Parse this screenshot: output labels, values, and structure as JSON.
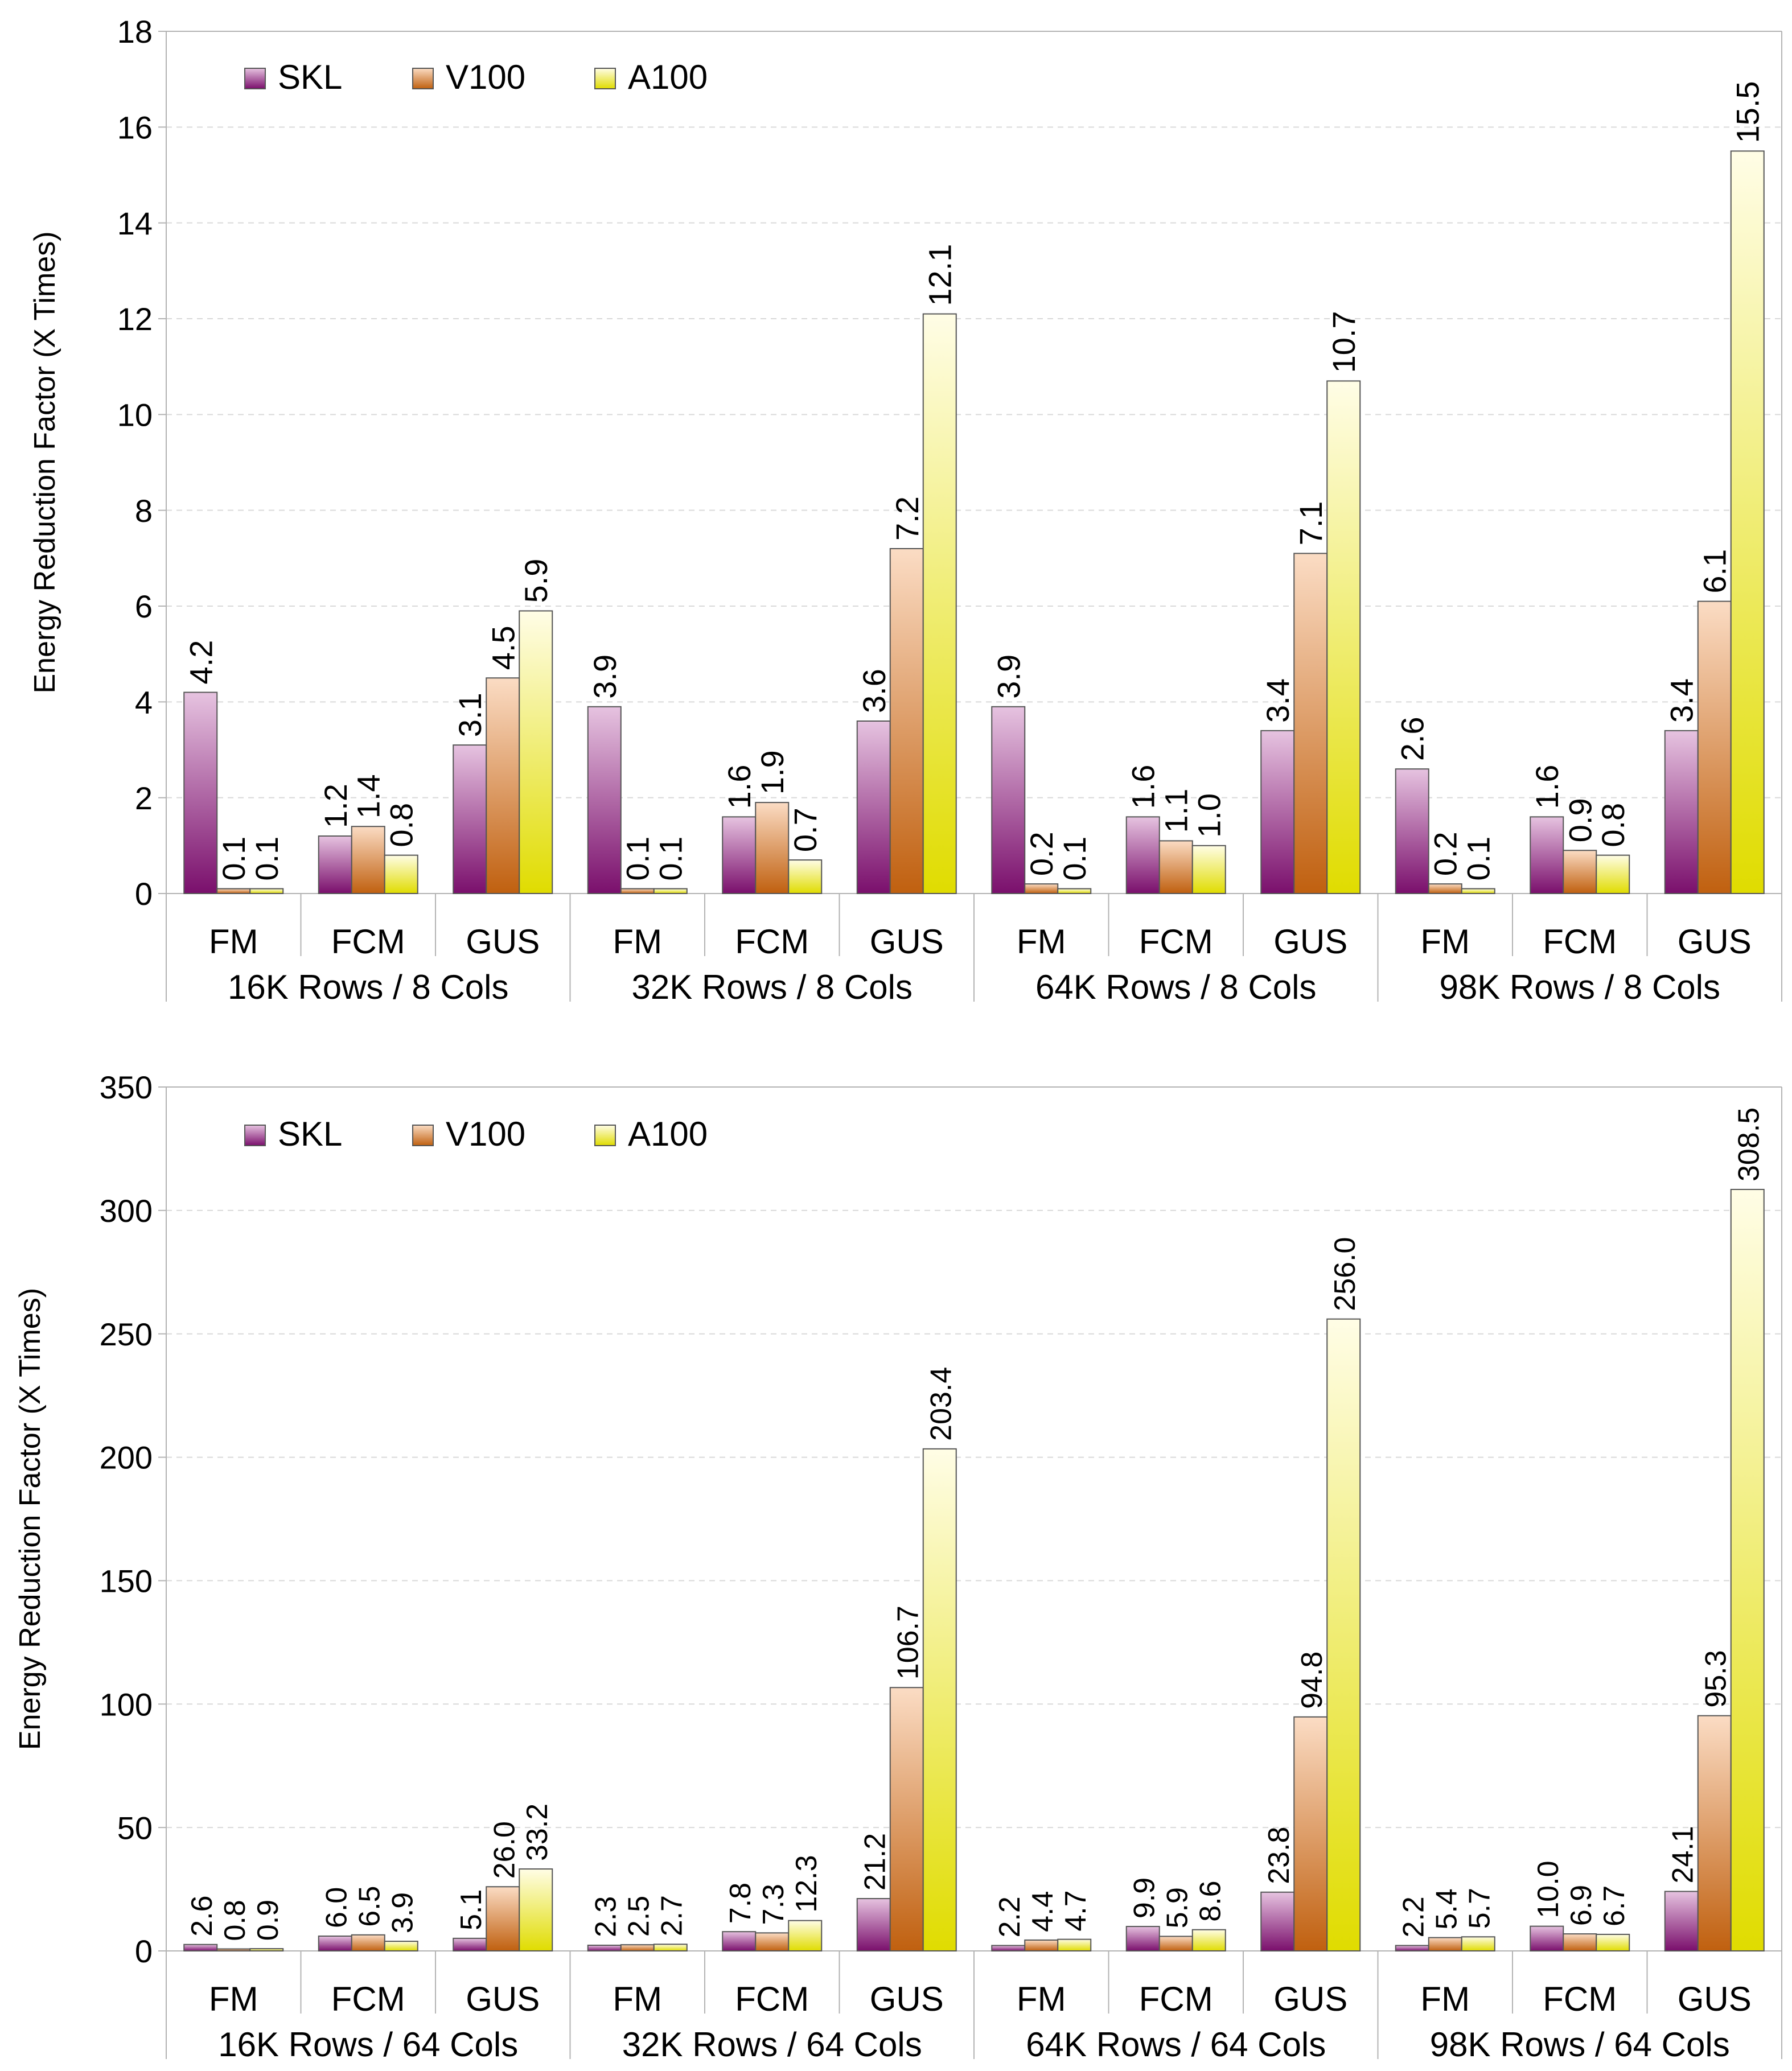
{
  "colors": {
    "SKL": {
      "top": "#e6c3e0",
      "bottom": "#7a0f6c"
    },
    "V100": {
      "top": "#fbdcc4",
      "bottom": "#c0600f"
    },
    "A100": {
      "top": "#fffde6",
      "bottom": "#e0dc00"
    }
  },
  "chart_data": [
    {
      "type": "bar",
      "title": "",
      "ylabel": "Energy Reduction Factor (X Times)",
      "xlabel": "",
      "ylim": [
        0,
        18
      ],
      "yticks": [
        0,
        2,
        4,
        6,
        8,
        10,
        12,
        14,
        16,
        18
      ],
      "grid": true,
      "legend_position": "top-left",
      "series_names": [
        "SKL",
        "V100",
        "A100"
      ],
      "groups": [
        {
          "label": "16K Rows / 8 Cols",
          "categories": [
            {
              "name": "FM",
              "values": [
                4.2,
                0.1,
                0.1
              ]
            },
            {
              "name": "FCM",
              "values": [
                1.2,
                1.4,
                0.8
              ]
            },
            {
              "name": "GUS",
              "values": [
                3.1,
                4.5,
                5.9
              ]
            }
          ]
        },
        {
          "label": "32K Rows / 8 Cols",
          "categories": [
            {
              "name": "FM",
              "values": [
                3.9,
                0.1,
                0.1
              ]
            },
            {
              "name": "FCM",
              "values": [
                1.6,
                1.9,
                0.7
              ]
            },
            {
              "name": "GUS",
              "values": [
                3.6,
                7.2,
                12.1
              ]
            }
          ]
        },
        {
          "label": "64K Rows / 8 Cols",
          "categories": [
            {
              "name": "FM",
              "values": [
                3.9,
                0.2,
                0.1
              ]
            },
            {
              "name": "FCM",
              "values": [
                1.6,
                1.1,
                1.0
              ]
            },
            {
              "name": "GUS",
              "values": [
                3.4,
                7.1,
                10.7
              ]
            }
          ]
        },
        {
          "label": "98K Rows / 8 Cols",
          "categories": [
            {
              "name": "FM",
              "values": [
                2.6,
                0.2,
                0.1
              ]
            },
            {
              "name": "FCM",
              "values": [
                1.6,
                0.9,
                0.8
              ]
            },
            {
              "name": "GUS",
              "values": [
                3.4,
                6.1,
                15.5
              ]
            }
          ]
        }
      ]
    },
    {
      "type": "bar",
      "title": "",
      "ylabel": "Energy Reduction Factor (X Times)",
      "xlabel": "",
      "ylim": [
        0,
        350
      ],
      "yticks": [
        0,
        50,
        100,
        150,
        200,
        250,
        300,
        350
      ],
      "grid": true,
      "legend_position": "top-left",
      "series_names": [
        "SKL",
        "V100",
        "A100"
      ],
      "groups": [
        {
          "label": "16K Rows / 64 Cols",
          "categories": [
            {
              "name": "FM",
              "values": [
                2.6,
                0.8,
                0.9
              ]
            },
            {
              "name": "FCM",
              "values": [
                6.0,
                6.5,
                3.9
              ]
            },
            {
              "name": "GUS",
              "values": [
                5.1,
                26.0,
                33.2
              ]
            }
          ]
        },
        {
          "label": "32K Rows / 64 Cols",
          "categories": [
            {
              "name": "FM",
              "values": [
                2.3,
                2.5,
                2.7
              ]
            },
            {
              "name": "FCM",
              "values": [
                7.8,
                7.3,
                12.3
              ]
            },
            {
              "name": "GUS",
              "values": [
                21.2,
                106.7,
                203.4
              ]
            }
          ]
        },
        {
          "label": "64K Rows / 64 Cols",
          "categories": [
            {
              "name": "FM",
              "values": [
                2.2,
                4.4,
                4.7
              ]
            },
            {
              "name": "FCM",
              "values": [
                9.9,
                5.9,
                8.6
              ]
            },
            {
              "name": "GUS",
              "values": [
                23.8,
                94.8,
                256.0
              ]
            }
          ]
        },
        {
          "label": "98K Rows / 64 Cols",
          "categories": [
            {
              "name": "FM",
              "values": [
                2.2,
                5.4,
                5.7
              ]
            },
            {
              "name": "FCM",
              "values": [
                10.0,
                6.9,
                6.7
              ]
            },
            {
              "name": "GUS",
              "values": [
                24.1,
                95.3,
                308.5
              ]
            }
          ]
        }
      ]
    }
  ]
}
